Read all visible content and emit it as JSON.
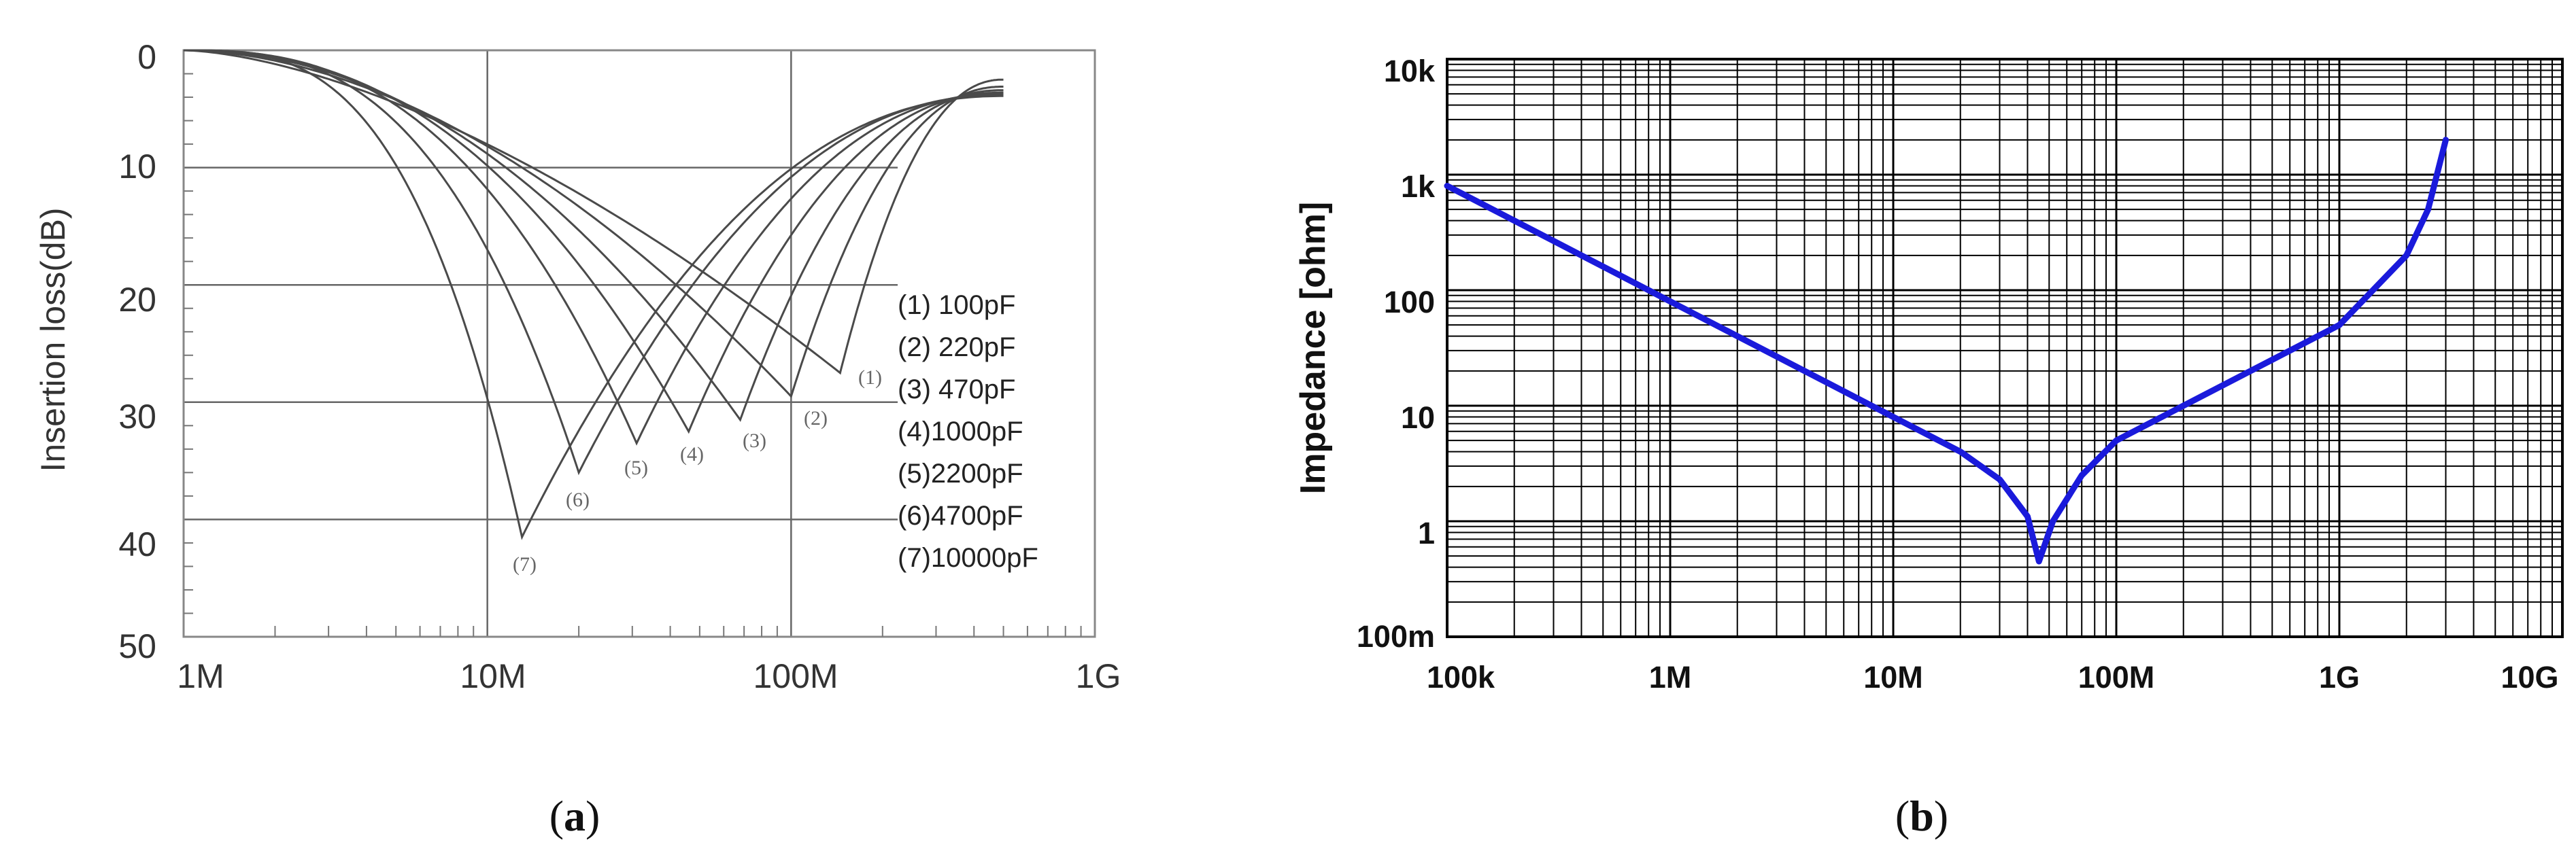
{
  "chart_data": [
    {
      "id": "a",
      "type": "line",
      "panel_label": {
        "open": "(",
        "letter": "a",
        "close": ")"
      },
      "xlabel": "",
      "ylabel": "Insertion loss(dB)",
      "x_scale": "log",
      "xlim": [
        1000000,
        1000000000
      ],
      "ylim": [
        0,
        50
      ],
      "y_inverted": true,
      "x_ticks": [
        {
          "value": 1000000,
          "label": "1M"
        },
        {
          "value": 10000000,
          "label": "10M"
        },
        {
          "value": 100000000,
          "label": "100M"
        },
        {
          "value": 1000000000,
          "label": "1G"
        }
      ],
      "y_ticks": [
        {
          "value": 0,
          "label": "0"
        },
        {
          "value": 10,
          "label": "10"
        },
        {
          "value": 20,
          "label": "20"
        },
        {
          "value": 30,
          "label": "30"
        },
        {
          "value": 40,
          "label": "40"
        },
        {
          "value": 50,
          "label": "50"
        }
      ],
      "legend": [
        "(1) 100pF",
        "(2) 220pF",
        "(3) 470pF",
        "(4)1000pF",
        "(5)2200pF",
        "(6)4700pF",
        "(7)10000pF"
      ],
      "series": [
        {
          "name": "(1)",
          "resonance_hz": 145000000,
          "min_loss_db": 27.5,
          "end_hz": 500000000,
          "end_loss_db": 2.5
        },
        {
          "name": "(2)",
          "resonance_hz": 100000000,
          "min_loss_db": 29.5,
          "end_hz": 500000000,
          "end_loss_db": 3.1
        },
        {
          "name": "(3)",
          "resonance_hz": 68000000,
          "min_loss_db": 31.5,
          "end_hz": 500000000,
          "end_loss_db": 3.4
        },
        {
          "name": "(4)",
          "resonance_hz": 46000000,
          "min_loss_db": 32.5,
          "end_hz": 500000000,
          "end_loss_db": 3.6
        },
        {
          "name": "(5)",
          "resonance_hz": 31000000,
          "min_loss_db": 33.5,
          "end_hz": 500000000,
          "end_loss_db": 3.7
        },
        {
          "name": "(6)",
          "resonance_hz": 20000000,
          "min_loss_db": 36.0,
          "end_hz": 500000000,
          "end_loss_db": 3.8
        },
        {
          "name": "(7)",
          "resonance_hz": 13000000,
          "min_loss_db": 41.5,
          "end_hz": 500000000,
          "end_loss_db": 3.9
        }
      ],
      "grid": "major"
    },
    {
      "id": "b",
      "type": "line",
      "panel_label": {
        "open": "(",
        "letter": "b",
        "close": ")"
      },
      "xlabel": "",
      "ylabel": "Impedance [ohm]",
      "x_scale": "log",
      "y_scale": "log",
      "xlim": [
        100000,
        10000000000
      ],
      "ylim": [
        0.1,
        10000
      ],
      "x_ticks": [
        {
          "value": 100000,
          "label": "100k"
        },
        {
          "value": 1000000,
          "label": "1M"
        },
        {
          "value": 10000000,
          "label": "10M"
        },
        {
          "value": 100000000,
          "label": "100M"
        },
        {
          "value": 1000000000,
          "label": "1G"
        },
        {
          "value": 10000000000,
          "label": "10G"
        }
      ],
      "y_ticks": [
        {
          "value": 0.1,
          "label": "100m"
        },
        {
          "value": 1,
          "label": "1"
        },
        {
          "value": 10,
          "label": "10"
        },
        {
          "value": 100,
          "label": "100"
        },
        {
          "value": 1000,
          "label": "1k"
        },
        {
          "value": 10000,
          "label": "10k"
        }
      ],
      "series": [
        {
          "name": "Impedance",
          "color": "#1a1adb",
          "points": [
            [
              100000,
              800
            ],
            [
              200000,
              400
            ],
            [
              500000,
              160
            ],
            [
              1000000,
              80
            ],
            [
              2000000,
              40
            ],
            [
              5000000,
              16
            ],
            [
              10000000,
              8
            ],
            [
              20000000,
              4
            ],
            [
              30000000,
              2.3
            ],
            [
              40000000,
              1.1
            ],
            [
              45000000,
              0.45
            ],
            [
              52000000,
              1
            ],
            [
              70000000,
              2.5
            ],
            [
              100000000,
              5
            ],
            [
              200000000,
              10
            ],
            [
              500000000,
              25
            ],
            [
              1000000000,
              50
            ],
            [
              2000000000,
              200
            ],
            [
              2500000000,
              500
            ],
            [
              3000000000,
              2000
            ]
          ]
        }
      ],
      "grid": "major+minor"
    }
  ]
}
